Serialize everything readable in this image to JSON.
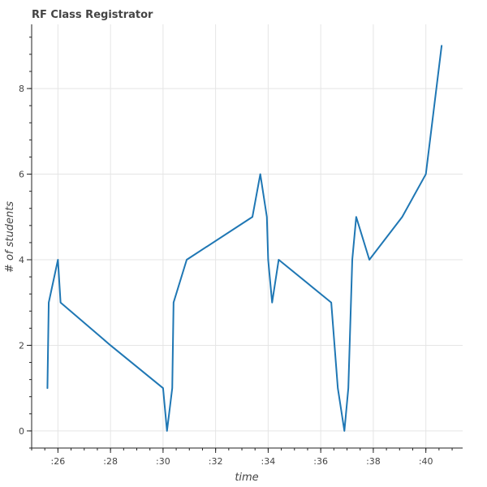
{
  "chart_data": {
    "type": "line",
    "title": "RF Class Registrator",
    "xlabel": "time",
    "ylabel": "# of students",
    "grid": true,
    "legend": "none",
    "x_unit": "seconds",
    "xlim": [
      25.0,
      41.4
    ],
    "ylim": [
      -0.4,
      9.5
    ],
    "x_ticks": [
      26,
      28,
      30,
      32,
      34,
      36,
      38,
      40
    ],
    "x_tick_labels": [
      ":26",
      ":28",
      ":30",
      ":32",
      ":34",
      ":36",
      ":38",
      ":40"
    ],
    "y_ticks": [
      0,
      2,
      4,
      6,
      8
    ],
    "y_tick_labels": [
      "0",
      "2",
      "4",
      "6",
      "8"
    ],
    "series": [
      {
        "color": "#1f77b4",
        "x": [
          25.6,
          25.65,
          26.0,
          26.1,
          28.0,
          30.0,
          30.15,
          30.35,
          30.4,
          30.9,
          33.4,
          33.7,
          33.95,
          34.0,
          34.15,
          34.4,
          36.4,
          36.65,
          36.9,
          37.05,
          37.2,
          37.35,
          37.85,
          39.1,
          40.0,
          40.2,
          40.4,
          40.6
        ],
        "y": [
          1,
          3,
          4,
          3,
          2,
          1,
          0,
          1,
          3,
          4,
          5,
          6,
          5,
          4,
          3,
          4,
          3,
          1,
          0,
          1,
          4,
          5,
          4,
          5,
          6,
          7,
          8,
          9
        ]
      }
    ]
  }
}
